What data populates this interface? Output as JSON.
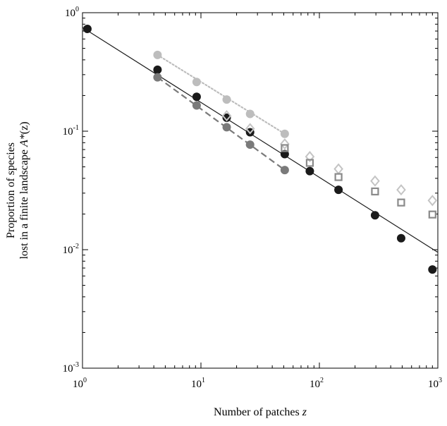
{
  "chart_data": {
    "type": "scatter",
    "title": "",
    "xlabel": "Number of patches z",
    "xlabel_parts": {
      "text": "Number of patches ",
      "var": "z"
    },
    "ylabel_line1": "Proportion of species",
    "ylabel_line2": {
      "text": "lost in a finite landscape ",
      "var": "A*",
      "suffix": "(z)"
    },
    "x_scale": "log",
    "y_scale": "log",
    "xlim": [
      1,
      1000
    ],
    "ylim": [
      0.001,
      1
    ],
    "x_ticks": [
      1,
      10,
      100,
      1000
    ],
    "x_tick_labels": [
      {
        "base": "10",
        "exp": "0"
      },
      {
        "base": "10",
        "exp": "1"
      },
      {
        "base": "10",
        "exp": "2"
      },
      {
        "base": "10",
        "exp": "3"
      }
    ],
    "y_ticks": [
      0.001,
      0.01,
      0.1,
      1
    ],
    "y_tick_labels": [
      {
        "base": "10",
        "exp": "-3"
      },
      {
        "base": "10",
        "exp": "-2"
      },
      {
        "base": "10",
        "exp": "-1"
      },
      {
        "base": "10",
        "exp": "0"
      }
    ],
    "grid": false,
    "legend": "none",
    "series": [
      {
        "marker": "circle",
        "color": "#1a1a1a",
        "x": [
          1.1,
          4.3,
          9.2,
          16.5,
          26,
          51,
          83,
          145,
          295,
          490,
          900
        ],
        "y": [
          0.73,
          0.33,
          0.195,
          0.13,
          0.098,
          0.064,
          0.046,
          0.032,
          0.0195,
          0.0125,
          0.0068
        ]
      },
      {
        "marker": "circle",
        "color": "#bdbdbd",
        "x": [
          4.3,
          9.2,
          16.5,
          26,
          51
        ],
        "y": [
          0.44,
          0.26,
          0.185,
          0.14,
          0.095
        ]
      },
      {
        "marker": "circle",
        "color": "#7a7a7a",
        "x": [
          4.3,
          9.2,
          16.5,
          26,
          51
        ],
        "y": [
          0.285,
          0.165,
          0.108,
          0.077,
          0.047
        ]
      },
      {
        "marker": "diamond",
        "color": "#c4c4c4",
        "x": [
          16.5,
          26,
          51,
          83,
          145,
          295,
          490,
          900
        ],
        "y": [
          0.135,
          0.105,
          0.078,
          0.061,
          0.048,
          0.038,
          0.032,
          0.026
        ]
      },
      {
        "marker": "square",
        "color": "#8a8a8a",
        "x": [
          51,
          83,
          145,
          295,
          490,
          900
        ],
        "y": [
          0.072,
          0.054,
          0.041,
          0.031,
          0.025,
          0.0198
        ]
      }
    ],
    "lines": [
      {
        "style": "solid",
        "color": "#1a1a1a",
        "x": [
          1.0,
          1000
        ],
        "y": [
          0.75,
          0.0095
        ]
      },
      {
        "style": "dotted",
        "color": "#bdbdbd",
        "x": [
          4.3,
          51
        ],
        "y": [
          0.44,
          0.095
        ]
      },
      {
        "style": "dashed",
        "color": "#7a7a7a",
        "x": [
          4.3,
          51
        ],
        "y": [
          0.285,
          0.047
        ]
      }
    ]
  }
}
